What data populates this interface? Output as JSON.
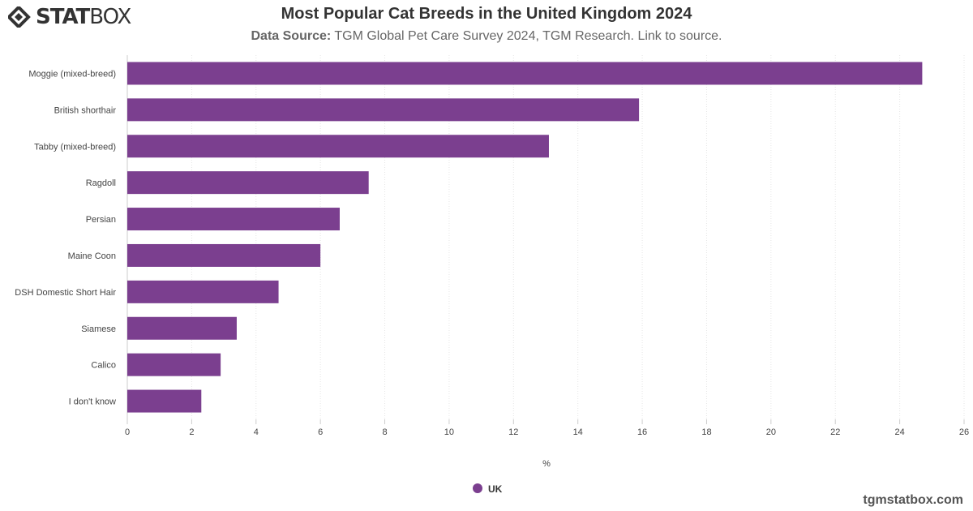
{
  "brand": {
    "logo_text_bold": "STAT",
    "logo_text_light": "BOX",
    "footer": "tgmstatbox.com"
  },
  "header": {
    "title": "Most Popular Cat Breeds in the United Kingdom 2024",
    "source_label": "Data Source:",
    "source_text": "TGM Global Pet Care Survey 2024, TGM Research.",
    "source_link": "Link to source."
  },
  "chart_data": {
    "type": "bar",
    "orientation": "horizontal",
    "title": "Most Popular Cat Breeds in the United Kingdom 2024",
    "xlabel": "%",
    "categories": [
      "Moggie (mixed-breed)",
      "British shorthair",
      "Tabby (mixed-breed)",
      "Ragdoll",
      "Persian",
      "Maine Coon",
      "DSH Domestic Short Hair",
      "Siamese",
      "Calico",
      "I don't know"
    ],
    "series": [
      {
        "name": "UK",
        "color": "#7b3f8f",
        "values": [
          24.7,
          15.9,
          13.1,
          7.5,
          6.6,
          6.0,
          4.7,
          3.4,
          2.9,
          2.3
        ]
      }
    ],
    "xlim": [
      0,
      26
    ],
    "ticks": [
      "0",
      "2",
      "4",
      "6",
      "8",
      "10",
      "12",
      "14",
      "16",
      "18",
      "20",
      "22",
      "24",
      "26"
    ],
    "grid": true,
    "legend": "bottom-center"
  }
}
